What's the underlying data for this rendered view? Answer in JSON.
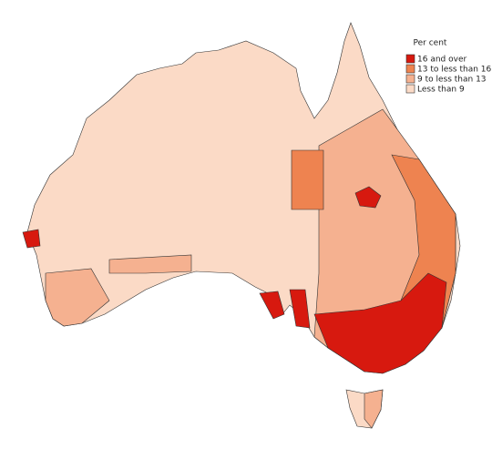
{
  "legend": {
    "title": "Per cent",
    "items": [
      {
        "label": "16 and over",
        "color": "#d7190f"
      },
      {
        "label": "13 to less than 16",
        "color": "#ee8350"
      },
      {
        "label": "9 to less than 13",
        "color": "#f5b190"
      },
      {
        "label": "Less than 9",
        "color": "#fbdac6"
      }
    ]
  }
}
